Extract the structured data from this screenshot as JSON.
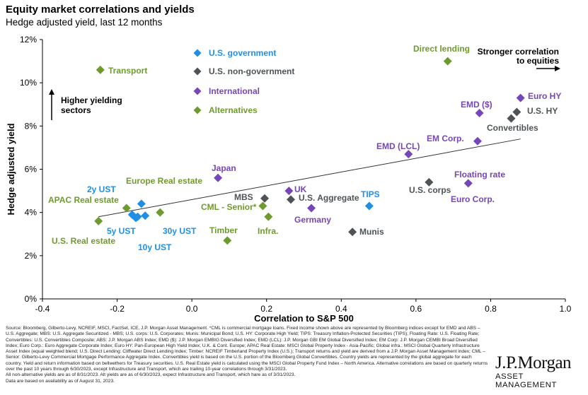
{
  "title": "Equity market correlations and yields",
  "subtitle": "Hedge adjusted yield, last 12 months",
  "chart_data": {
    "type": "scatter",
    "xlabel": "Correlation to S&P 500",
    "ylabel": "Hedge adjusted yield",
    "xlim": [
      -0.4,
      1.0
    ],
    "ylim": [
      0,
      12
    ],
    "x_ticks": [
      "-0.4",
      "-0.2",
      "0.0",
      "0.2",
      "0.4",
      "0.6",
      "0.8",
      "1.0"
    ],
    "y_ticks": [
      "0%",
      "2%",
      "4%",
      "6%",
      "8%",
      "10%",
      "12%"
    ],
    "grid": false,
    "legend_position": "top-center",
    "trendline": {
      "x0": -0.25,
      "y0": 3.8,
      "x1": 0.88,
      "y1": 7.4
    },
    "categories": [
      {
        "key": "gov",
        "name": "U.S. government",
        "color": "#1f8fe6"
      },
      {
        "key": "nongov",
        "name": "U.S. non-government",
        "color": "#4d5356"
      },
      {
        "key": "intl",
        "name": "International",
        "color": "#7646b9"
      },
      {
        "key": "alt",
        "name": "Alternatives",
        "color": "#6f9b2e"
      }
    ],
    "points": [
      {
        "label": "2y UST",
        "x": -0.135,
        "y": 4.4,
        "cat": "gov"
      },
      {
        "label": "",
        "x": -0.16,
        "y": 3.9,
        "cat": "gov"
      },
      {
        "label": "5y UST",
        "x": -0.15,
        "y": 3.75,
        "cat": "gov"
      },
      {
        "label": "30y UST",
        "x": -0.125,
        "y": 3.85,
        "cat": "gov"
      },
      {
        "label": "10y UST",
        "x": -0.145,
        "y": 3.8,
        "cat": "gov"
      },
      {
        "label": "TIPS",
        "x": 0.475,
        "y": 4.3,
        "cat": "gov"
      },
      {
        "label": "MBS",
        "x": 0.195,
        "y": 4.65,
        "cat": "nongov"
      },
      {
        "label": "U.S. Aggregate",
        "x": 0.265,
        "y": 4.6,
        "cat": "nongov"
      },
      {
        "label": "Munis",
        "x": 0.43,
        "y": 3.1,
        "cat": "nongov"
      },
      {
        "label": "U.S. corps",
        "x": 0.635,
        "y": 5.4,
        "cat": "nongov"
      },
      {
        "label": "Convertibles",
        "x": 0.855,
        "y": 8.35,
        "cat": "nongov"
      },
      {
        "label": "U.S. HY",
        "x": 0.87,
        "y": 8.65,
        "cat": "nongov"
      },
      {
        "label": "Japan",
        "x": 0.07,
        "y": 5.6,
        "cat": "intl"
      },
      {
        "label": "UK",
        "x": 0.26,
        "y": 5.0,
        "cat": "intl"
      },
      {
        "label": "Germany",
        "x": 0.32,
        "y": 4.2,
        "cat": "intl"
      },
      {
        "label": "EMD (LCL)",
        "x": 0.58,
        "y": 6.7,
        "cat": "intl"
      },
      {
        "label": "Floating rate",
        "x": 0.74,
        "y": 5.35,
        "cat": "intl"
      },
      {
        "label": "EM Corp.",
        "x": 0.765,
        "y": 7.3,
        "cat": "intl"
      },
      {
        "label": "EMD ($)",
        "x": 0.77,
        "y": 8.6,
        "cat": "intl"
      },
      {
        "label": "Euro HY",
        "x": 0.88,
        "y": 9.3,
        "cat": "intl"
      },
      {
        "label": "Transport",
        "x": -0.245,
        "y": 10.6,
        "cat": "alt"
      },
      {
        "label": "Direct lending",
        "x": 0.685,
        "y": 11.0,
        "cat": "alt"
      },
      {
        "label": "Europe Real estate",
        "x": -0.085,
        "y": 4.0,
        "cat": "alt"
      },
      {
        "label": "APAC Real estate",
        "x": -0.175,
        "y": 4.2,
        "cat": "alt"
      },
      {
        "label": "U.S. Real estate",
        "x": -0.25,
        "y": 3.6,
        "cat": "alt"
      },
      {
        "label": "CML - Senior*",
        "x": 0.19,
        "y": 4.3,
        "cat": "alt"
      },
      {
        "label": "Infra.",
        "x": 0.205,
        "y": 3.8,
        "cat": "alt"
      },
      {
        "label": "Timber",
        "x": 0.095,
        "y": 2.7,
        "cat": "alt"
      }
    ],
    "annotations": [
      {
        "text": "Stronger correlation",
        "key": "stronger1"
      },
      {
        "text": "to equities",
        "key": "stronger2"
      },
      {
        "text": "Higher yielding",
        "key": "higher1"
      },
      {
        "text": "sectors",
        "key": "higher2"
      },
      {
        "text": "Euro Corp.",
        "key": "eurocorp"
      }
    ]
  },
  "footnote": "Source: Bloomberg, Gilberto-Levy, NCREIF, MSCI, FactSet, ICE, J.P. Morgan Asset Management. *CML is commercial mortgage loans. Fixed income shown above are represented by Bloomberg indices except for EMD and ABS – U.S. Aggregate; MBS: U.S. Aggregate Securitized - MBS; U.S. corps: U.S. Corporates; Munis: Municipal Bond; U.S. HY: Corporate High Yield; TIPS: Treasury Inflation-Protected Securities (TIPS); Floating Rate: U.S. Floating Rate; Convertibles: U.S. Convertibles Composite; ABS: J.P. Morgan ABS Index; EMD ($): J.P. Morgan EMBIG Diversified Index; EMD (LCL): J.P. Morgan GBI EM Global Diversified Index; EM Corp: J.P. Morgan CEMBI Broad Diversified Index; Euro Corp.: Euro Aggregate Corporate Index; Euro HY: Pan-European High Yield Index; U.K. & Cont. Europe; APAC Real Estate: MSCI Global Property Index - Asia-Pacific; Global infra.: MSCI Global Quarterly Infrastructure Asset Index (equal weighted blend; U.S. Direct Lending: Cliffwater Direct Lending Index; Timber: NCREIF Timberland Property Index (U.S.); Transport returns and yield are derived from a J.P. Morgan Asset Management index; CML – Senior: Gilberto-Levy Commercial Mortgage Performance Aggregate Index. Convertibles yield is based on the U.S. portion of the Bloomberg Global Convertibles. Country yields are represented by the global aggregate for each country. Yield and return information based on bellwethers for Treasury securities. U.S. Real Estate yield is calculated using the MSCI Global Property Fund Index – North America. Alternative correlations are based on quarterly returns over the past 10 years through 6/30/2023, except Infrastructure and Transport, which are trailing 10-year correlations through 3/31/2023.",
  "footnote2": "All non-alternative yields are as of 8/31/2023. Alt yields are as of 6/30/2023, expect Infrastructure and Transport, which hare as of 3/31/2023.",
  "footnote3": "Data are based on availability as of August 31, 2023.",
  "logo": {
    "main": "J.P.Morgan",
    "sub": "ASSET MANAGEMENT"
  }
}
